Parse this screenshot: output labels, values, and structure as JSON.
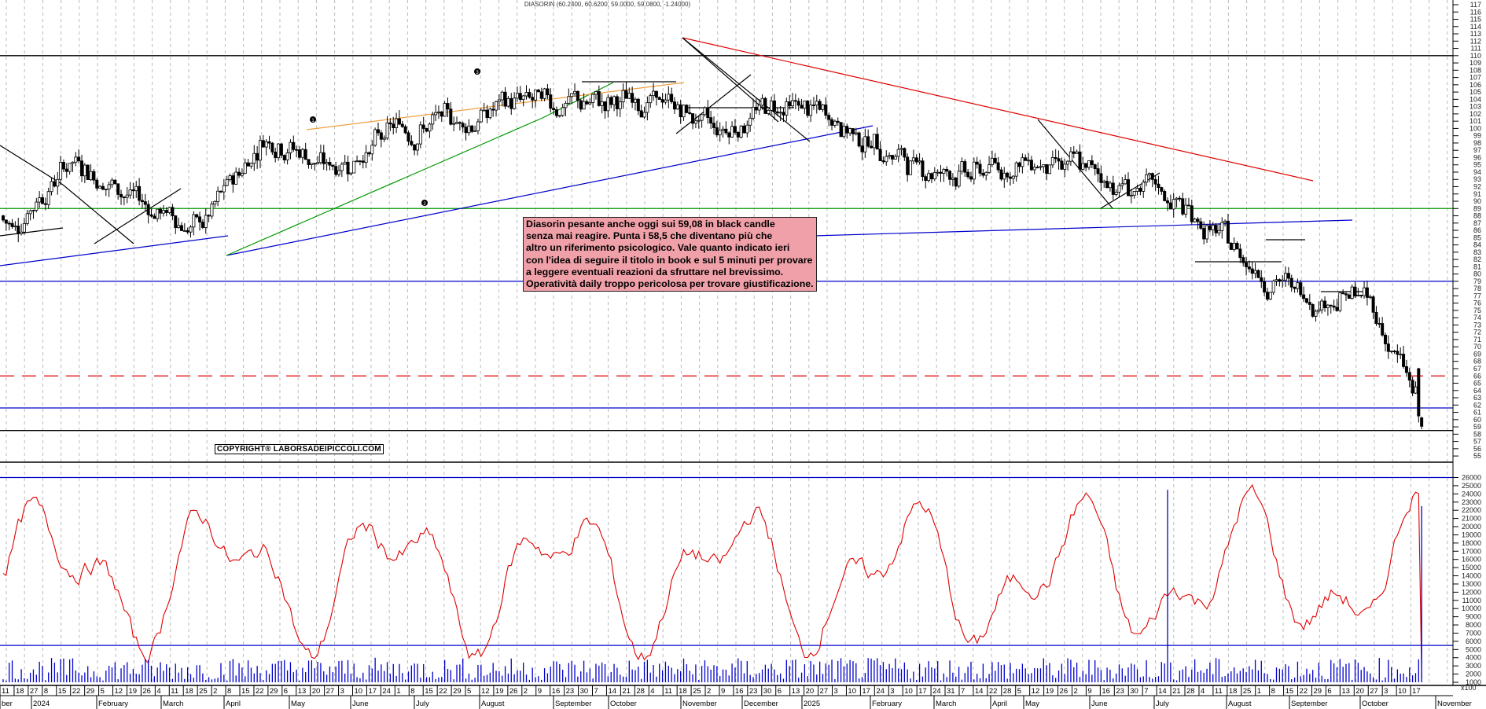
{
  "header": {
    "title": "DIASORIN (60.2400, 60.6200, 59.0000, 59.0800, -1.24000)"
  },
  "annotation": {
    "text": "Diasorin pesante anche oggi sui 59,08 in black candle\nsenza mai reagire. Punta i 58,5 che diventano più che\naltro un riferimento psicologico. Vale quanto indicato ieri\ncon l'idea di seguire il titolo in book e sul 5 minuti per provare\na leggere eventuali reazioni da sfruttare nel brevissimo.\nOperatività daily troppo pericolosa per trovare giustificazione."
  },
  "copyright": "COPYRIGHT® LABORSADEIPICCOLI.COM",
  "markers": [
    "1",
    "2",
    "3"
  ],
  "volume_axis_unit": "x100",
  "colors": {
    "price_candles": "#000000",
    "oscillator": "#e00000",
    "volume_bars": "#0000cc",
    "support_blue": "#0000cc",
    "resistance_red": "#e00000",
    "trend_green": "#009900",
    "trend_orange": "#f0a040",
    "annotation_bg": "#f0a0a8"
  },
  "chart_data": [
    {
      "type": "candlestick",
      "title": "DIASORIN (60.2400, 60.6200, 59.0000, 59.0800, -1.24000)",
      "last_bar": {
        "open": 60.24,
        "high": 60.62,
        "low": 59.0,
        "close": 59.08,
        "change": -1.24
      },
      "ylim": [
        55,
        117
      ],
      "y_ticks": [
        55,
        56,
        57,
        58,
        59,
        60,
        61,
        62,
        63,
        64,
        65,
        66,
        67,
        68,
        69,
        70,
        71,
        72,
        73,
        74,
        75,
        76,
        77,
        78,
        79,
        80,
        81,
        82,
        83,
        84,
        85,
        86,
        87,
        88,
        89,
        90,
        91,
        92,
        93,
        94,
        95,
        96,
        97,
        98,
        99,
        100,
        101,
        102,
        103,
        104,
        105,
        106,
        107,
        108,
        109,
        110,
        111,
        112,
        113,
        114,
        115,
        116,
        117
      ],
      "horizontal_lines": [
        {
          "level": 110,
          "color": "black",
          "style": "solid"
        },
        {
          "level": 89,
          "color": "green",
          "style": "solid"
        },
        {
          "level": 79,
          "color": "blue",
          "style": "solid"
        },
        {
          "level": 66,
          "color": "red",
          "style": "dashed"
        },
        {
          "level": 61.6,
          "color": "blue",
          "style": "solid"
        },
        {
          "level": 58.5,
          "color": "black",
          "style": "solid"
        }
      ],
      "approx_closes_by_month": {
        "Jan 2024": 86,
        "Feb 2024": 96,
        "Mar 2024": 90,
        "Apr 2024": 86,
        "May 2024": 100,
        "Jun 2024": 94,
        "Jul 2024": 100,
        "Aug 2024": 101,
        "Sep 2024": 104,
        "Oct 2024": 103,
        "Nov 2024": 104,
        "Dec 2024": 100,
        "Jan 2025": 104,
        "Feb 2025": 100,
        "Mar 2025": 95,
        "Apr 2025": 94,
        "May 2025": 96,
        "Jun 2025": 93,
        "Jul 2025": 90,
        "Aug 2025": 83,
        "Sep 2025": 77,
        "Oct 2025": 77,
        "Nov 2025": 59.08
      },
      "grid": true
    },
    {
      "type": "line",
      "name": "volume oscillator",
      "ylim": [
        0,
        26000
      ],
      "y_ticks": [
        1000,
        2000,
        3000,
        4000,
        5000,
        6000,
        7000,
        8000,
        9000,
        10000,
        11000,
        12000,
        13000,
        14000,
        15000,
        16000,
        17000,
        18000,
        19000,
        20000,
        21000,
        22000,
        23000,
        24000,
        25000,
        26000
      ],
      "reference_lines": [
        {
          "level": 26000,
          "color": "blue"
        },
        {
          "level": 5500,
          "color": "blue"
        }
      ],
      "unit": "x100"
    },
    {
      "type": "bar",
      "name": "volume",
      "unit": "x100",
      "notable_spikes": [
        {
          "month": "Aug 2025",
          "value": 24500
        },
        {
          "month": "Nov 2025",
          "value": 22500
        }
      ]
    }
  ],
  "x_axis": {
    "day_ticks": [
      "11",
      "18",
      "27",
      "8",
      "15",
      "22",
      "29",
      "5",
      "12",
      "19",
      "26",
      "4",
      "11",
      "18",
      "25",
      "2",
      "8",
      "15",
      "22",
      "29",
      "6",
      "13",
      "20",
      "27",
      "3",
      "10",
      "17",
      "24",
      "1",
      "8",
      "15",
      "22",
      "29",
      "5",
      "12",
      "19",
      "26",
      "2",
      "9",
      "16",
      "23",
      "30",
      "7",
      "14",
      "21",
      "28",
      "4",
      "11",
      "18",
      "25",
      "2",
      "9",
      "16",
      "23",
      "30",
      "6",
      "13",
      "20",
      "27",
      "3",
      "10",
      "17",
      "24",
      "3",
      "10",
      "17",
      "24",
      "31",
      "7",
      "14",
      "22",
      "28",
      "5",
      "12",
      "19",
      "26",
      "2",
      "9",
      "16",
      "23",
      "30",
      "7",
      "14",
      "21",
      "28",
      "4",
      "11",
      "18",
      "25",
      "1",
      "8",
      "15",
      "22",
      "29",
      "6",
      "13",
      "20",
      "27",
      "3",
      "10",
      "17"
    ],
    "months": [
      "ber",
      "2024",
      "February",
      "March",
      "April",
      "May",
      "June",
      "July",
      "August",
      "September",
      "October",
      "November",
      "December",
      "2025",
      "February",
      "March",
      "April",
      "May",
      "June",
      "July",
      "August",
      "September",
      "October",
      "November"
    ]
  }
}
